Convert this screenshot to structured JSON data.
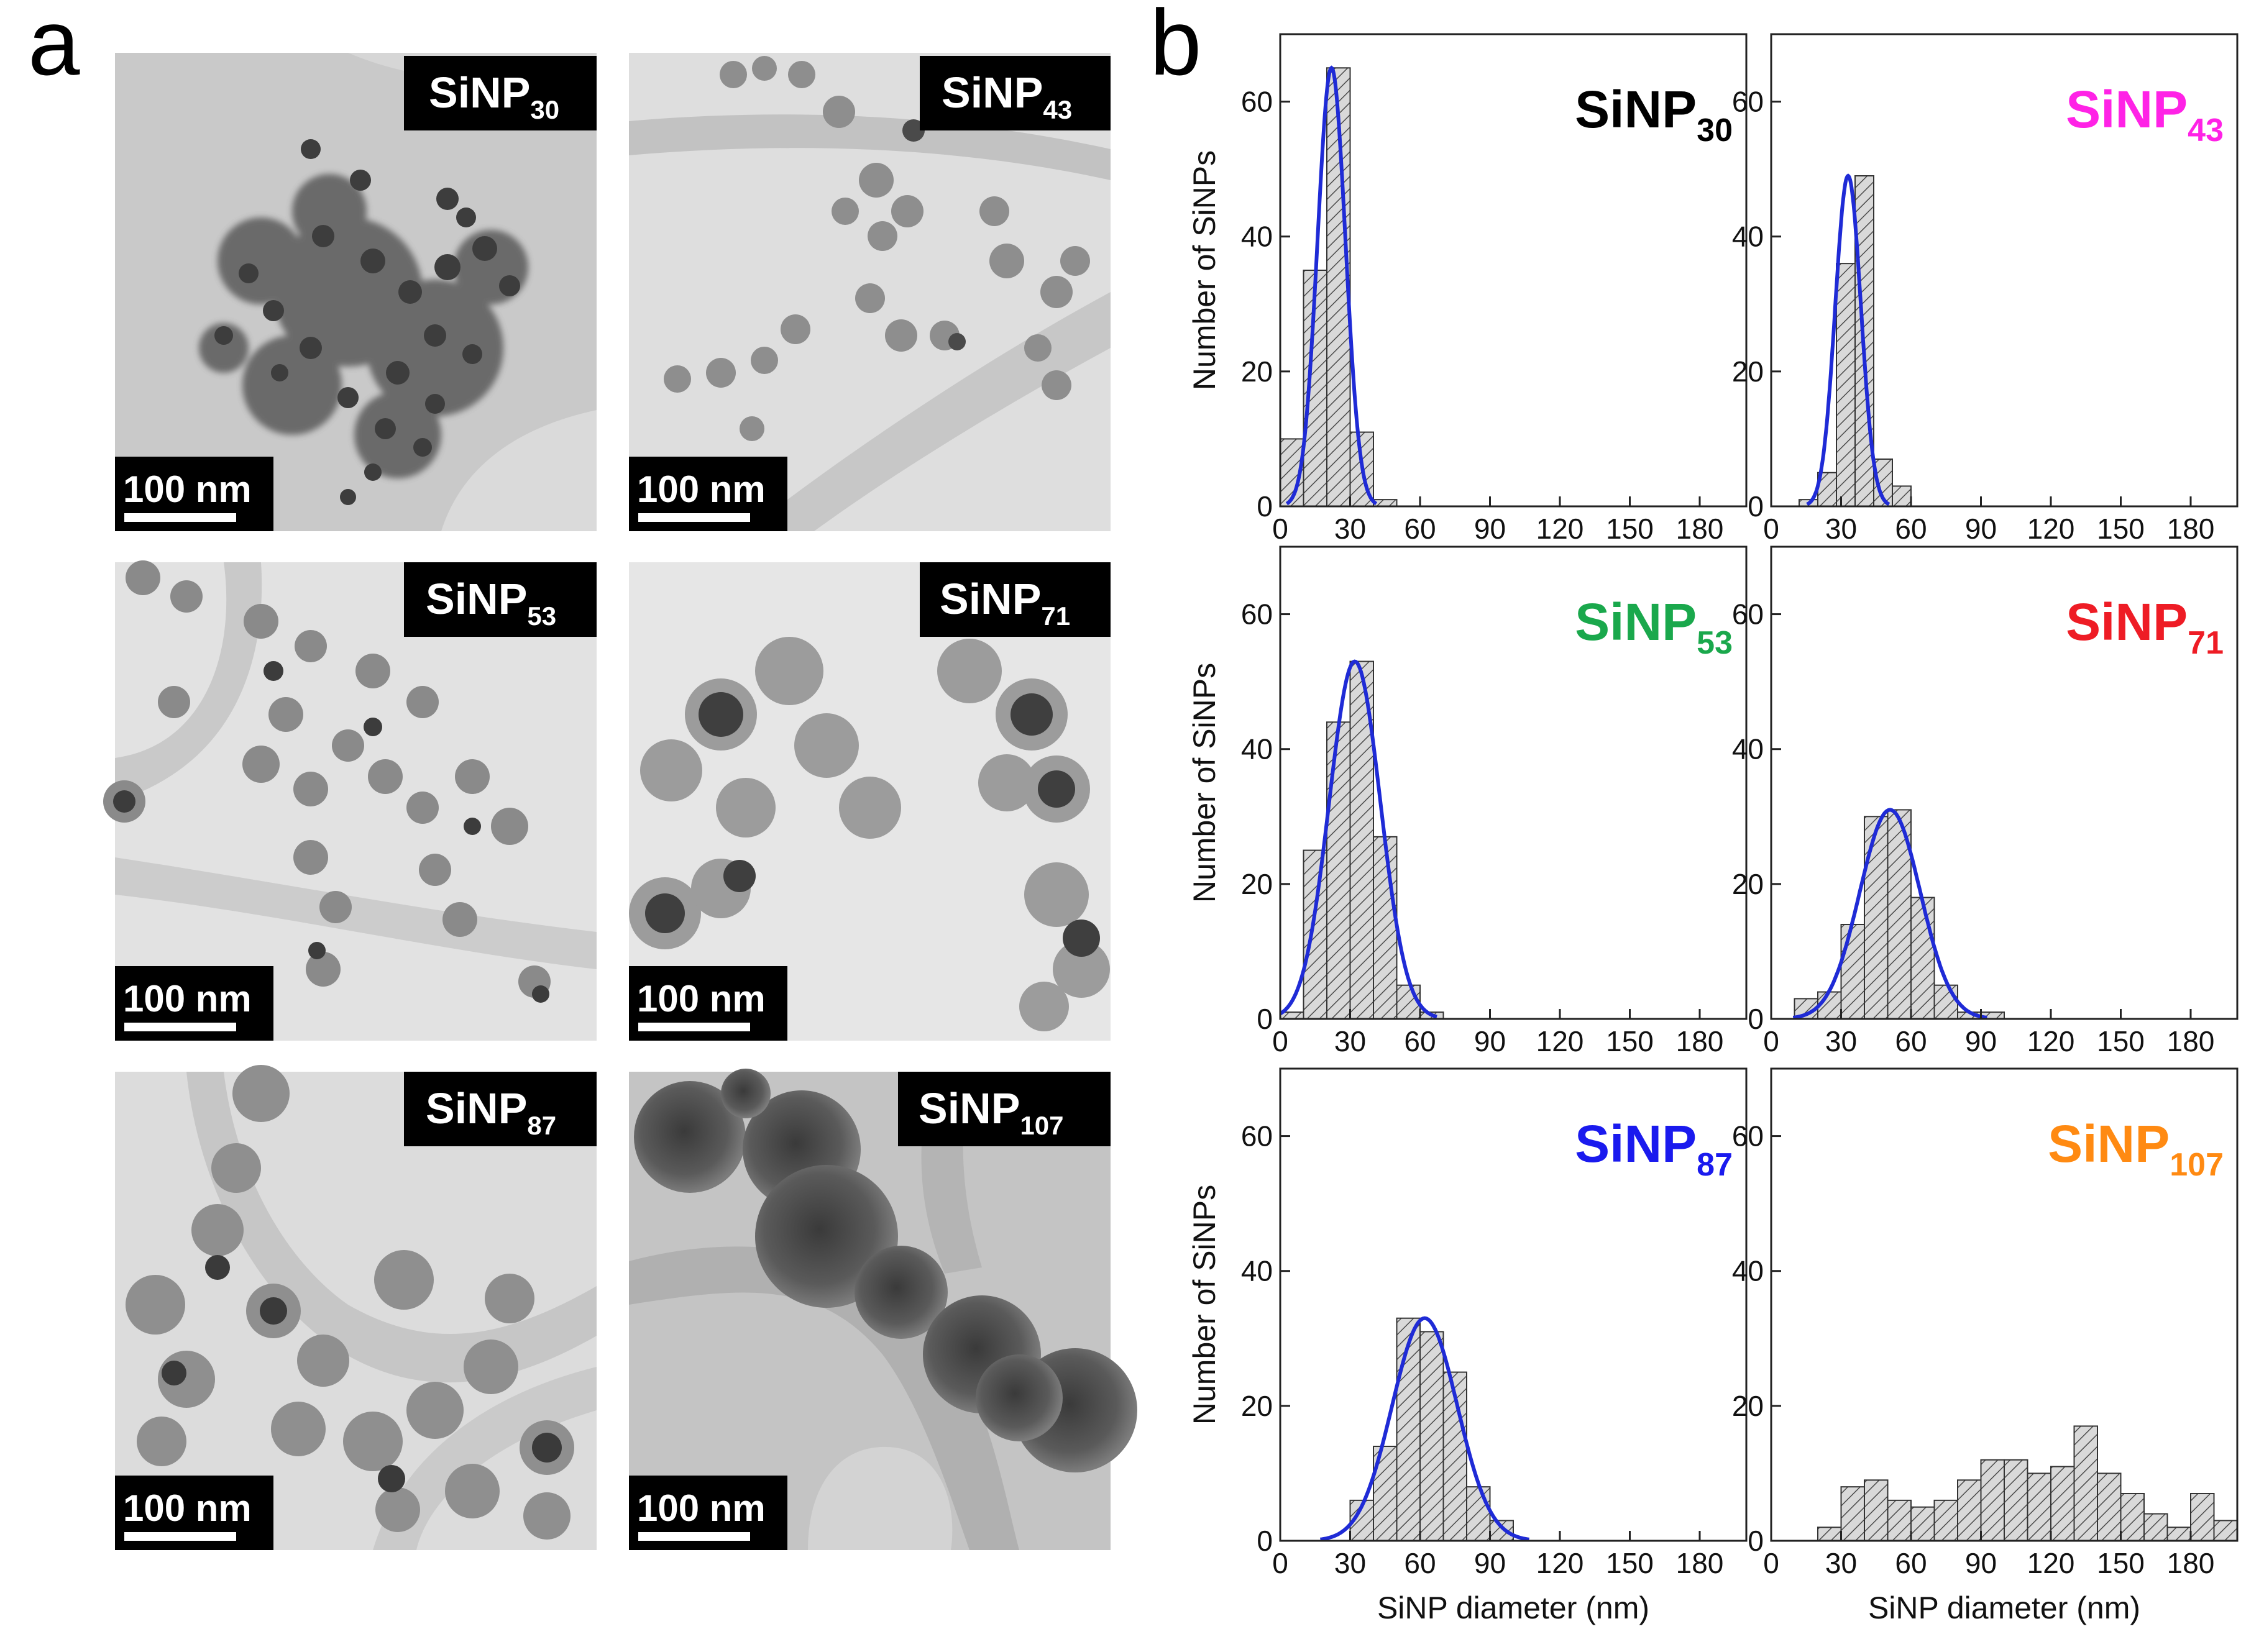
{
  "figure": {
    "panel_a_letter": "a",
    "panel_b_letter": "b",
    "scale_bar_text": "100 nm",
    "tem_panels": [
      {
        "name": "SiNP",
        "sub": "30"
      },
      {
        "name": "SiNP",
        "sub": "43"
      },
      {
        "name": "SiNP",
        "sub": "53"
      },
      {
        "name": "SiNP",
        "sub": "71"
      },
      {
        "name": "SiNP",
        "sub": "87"
      },
      {
        "name": "SiNP",
        "sub": "107"
      }
    ]
  },
  "colors": {
    "fit_line": "#1f2bd6",
    "title_30": "#000000",
    "title_43": "#ff22e6",
    "title_53": "#1aa84c",
    "title_71": "#ee1c25",
    "title_87": "#1a1aee",
    "title_107": "#ff8a12"
  },
  "chart_data": [
    {
      "type": "bar",
      "title": "SiNP",
      "title_sub": "30",
      "title_color": "#000000",
      "xlabel": "",
      "ylabel": "Number of SiNPs",
      "xlim": [
        0,
        200
      ],
      "ylim": [
        0,
        70
      ],
      "xticks": [
        0,
        30,
        60,
        90,
        120,
        150,
        180
      ],
      "yticks": [
        0,
        20,
        40,
        60
      ],
      "bin_width": 10,
      "bin_starts": [
        0,
        10,
        20,
        30,
        40
      ],
      "values": [
        10,
        35,
        65,
        11,
        1
      ],
      "fit": {
        "type": "gaussian",
        "mean": 22,
        "sigma": 6,
        "peak": 65
      }
    },
    {
      "type": "bar",
      "title": "SiNP",
      "title_sub": "43",
      "title_color": "#ff22e6",
      "xlabel": "",
      "ylabel": "",
      "xlim": [
        0,
        200
      ],
      "ylim": [
        0,
        70
      ],
      "xticks": [
        0,
        30,
        60,
        90,
        120,
        150,
        180
      ],
      "yticks": [
        0,
        20,
        40,
        60
      ],
      "bin_width": 8,
      "bin_starts": [
        12,
        20,
        28,
        36,
        44,
        52
      ],
      "values": [
        1,
        5,
        36,
        49,
        7,
        3
      ],
      "fit": {
        "type": "gaussian",
        "mean": 33,
        "sigma": 5.5,
        "peak": 49
      }
    },
    {
      "type": "bar",
      "title": "SiNP",
      "title_sub": "53",
      "title_color": "#1aa84c",
      "xlabel": "",
      "ylabel": "Number of SiNPs",
      "xlim": [
        0,
        200
      ],
      "ylim": [
        0,
        70
      ],
      "xticks": [
        0,
        30,
        60,
        90,
        120,
        150,
        180
      ],
      "yticks": [
        0,
        20,
        40,
        60
      ],
      "bin_width": 10,
      "bin_starts": [
        0,
        10,
        20,
        30,
        40,
        50,
        60
      ],
      "values": [
        1,
        25,
        44,
        53,
        27,
        5,
        1
      ],
      "fit": {
        "type": "gaussian",
        "mean": 32,
        "sigma": 11,
        "peak": 53
      }
    },
    {
      "type": "bar",
      "title": "SiNP",
      "title_sub": "71",
      "title_color": "#ee1c25",
      "xlabel": "",
      "ylabel": "",
      "xlim": [
        0,
        200
      ],
      "ylim": [
        0,
        70
      ],
      "xticks": [
        0,
        30,
        60,
        90,
        120,
        150,
        180
      ],
      "yticks": [
        0,
        20,
        40,
        60
      ],
      "bin_width": 10,
      "bin_starts": [
        10,
        20,
        30,
        40,
        50,
        60,
        70,
        80,
        90
      ],
      "values": [
        3,
        4,
        14,
        30,
        31,
        18,
        5,
        1,
        1
      ],
      "fit": {
        "type": "gaussian",
        "mean": 51,
        "sigma": 13,
        "peak": 31
      }
    },
    {
      "type": "bar",
      "title": "SiNP",
      "title_sub": "87",
      "title_color": "#1a1aee",
      "xlabel": "SiNP diameter (nm)",
      "ylabel": "Number of SiNPs",
      "xlim": [
        0,
        200
      ],
      "ylim": [
        0,
        70
      ],
      "xticks": [
        0,
        30,
        60,
        90,
        120,
        150,
        180
      ],
      "yticks": [
        0,
        20,
        40,
        60
      ],
      "bin_width": 10,
      "bin_starts": [
        30,
        40,
        50,
        60,
        70,
        80,
        90
      ],
      "values": [
        6,
        14,
        33,
        31,
        25,
        8,
        3
      ],
      "fit": {
        "type": "gaussian",
        "mean": 62,
        "sigma": 14,
        "peak": 33
      }
    },
    {
      "type": "bar",
      "title": "SiNP",
      "title_sub": "107",
      "title_color": "#ff8a12",
      "xlabel": "SiNP diameter (nm)",
      "ylabel": "",
      "xlim": [
        0,
        200
      ],
      "ylim": [
        0,
        70
      ],
      "xticks": [
        0,
        30,
        60,
        90,
        120,
        150,
        180
      ],
      "yticks": [
        0,
        20,
        40,
        60
      ],
      "bin_width": 10,
      "bin_starts": [
        20,
        30,
        40,
        50,
        60,
        70,
        80,
        90,
        100,
        110,
        120,
        130,
        140,
        150,
        160,
        170,
        180,
        190
      ],
      "values": [
        2,
        8,
        9,
        6,
        5,
        6,
        9,
        12,
        12,
        10,
        11,
        17,
        10,
        7,
        4,
        2,
        7,
        3
      ],
      "fit": null
    }
  ]
}
